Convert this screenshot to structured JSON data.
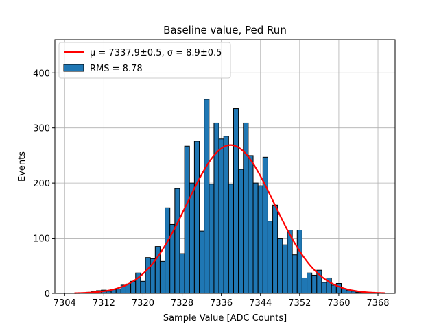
{
  "chart_data": {
    "type": "bar",
    "title": "Baseline value, Ped Run",
    "xlabel": "Sample Value [ADC Counts]",
    "ylabel": "Events",
    "xlim": [
      7302,
      7371.5
    ],
    "ylim": [
      0,
      460
    ],
    "xticks": [
      7304,
      7312,
      7320,
      7328,
      7336,
      7344,
      7352,
      7360,
      7368
    ],
    "yticks": [
      0,
      100,
      200,
      300,
      400
    ],
    "grid": true,
    "legend_position": "top-left",
    "histogram": {
      "name": "RMS = 8.78",
      "color": "#1f77b4",
      "edge_color": "#000000",
      "bin_width": 1,
      "bins": [
        {
          "x": 7309,
          "count": 2
        },
        {
          "x": 7310,
          "count": 3
        },
        {
          "x": 7311,
          "count": 5
        },
        {
          "x": 7312,
          "count": 6
        },
        {
          "x": 7313,
          "count": 4
        },
        {
          "x": 7314,
          "count": 7
        },
        {
          "x": 7315,
          "count": 8
        },
        {
          "x": 7316,
          "count": 15
        },
        {
          "x": 7317,
          "count": 17
        },
        {
          "x": 7318,
          "count": 22
        },
        {
          "x": 7319,
          "count": 37
        },
        {
          "x": 7320,
          "count": 22
        },
        {
          "x": 7321,
          "count": 65
        },
        {
          "x": 7322,
          "count": 63
        },
        {
          "x": 7323,
          "count": 85
        },
        {
          "x": 7324,
          "count": 58
        },
        {
          "x": 7325,
          "count": 155
        },
        {
          "x": 7326,
          "count": 125
        },
        {
          "x": 7327,
          "count": 190
        },
        {
          "x": 7328,
          "count": 72
        },
        {
          "x": 7329,
          "count": 267
        },
        {
          "x": 7330,
          "count": 200
        },
        {
          "x": 7331,
          "count": 276
        },
        {
          "x": 7332,
          "count": 113
        },
        {
          "x": 7333,
          "count": 352
        },
        {
          "x": 7334,
          "count": 198
        },
        {
          "x": 7335,
          "count": 309
        },
        {
          "x": 7336,
          "count": 280
        },
        {
          "x": 7337,
          "count": 285
        },
        {
          "x": 7338,
          "count": 198
        },
        {
          "x": 7339,
          "count": 335
        },
        {
          "x": 7340,
          "count": 225
        },
        {
          "x": 7341,
          "count": 309
        },
        {
          "x": 7342,
          "count": 250
        },
        {
          "x": 7343,
          "count": 200
        },
        {
          "x": 7344,
          "count": 195
        },
        {
          "x": 7345,
          "count": 247
        },
        {
          "x": 7346,
          "count": 131
        },
        {
          "x": 7347,
          "count": 160
        },
        {
          "x": 7348,
          "count": 100
        },
        {
          "x": 7349,
          "count": 88
        },
        {
          "x": 7350,
          "count": 115
        },
        {
          "x": 7351,
          "count": 70
        },
        {
          "x": 7352,
          "count": 115
        },
        {
          "x": 7353,
          "count": 28
        },
        {
          "x": 7354,
          "count": 37
        },
        {
          "x": 7355,
          "count": 33
        },
        {
          "x": 7356,
          "count": 42
        },
        {
          "x": 7357,
          "count": 20
        },
        {
          "x": 7358,
          "count": 28
        },
        {
          "x": 7359,
          "count": 15
        },
        {
          "x": 7360,
          "count": 18
        },
        {
          "x": 7361,
          "count": 8
        },
        {
          "x": 7362,
          "count": 6
        },
        {
          "x": 7363,
          "count": 4
        },
        {
          "x": 7364,
          "count": 2
        },
        {
          "x": 7365,
          "count": 2
        },
        {
          "x": 7366,
          "count": 1
        }
      ]
    },
    "fit": {
      "type": "gaussian",
      "name": "μ = 7337.9±0.5, σ = 8.9±0.5",
      "color": "#ff0000",
      "mu": 7337.9,
      "sigma": 8.9,
      "amplitude": 269,
      "x_range": [
        7306,
        7369.5
      ]
    }
  }
}
